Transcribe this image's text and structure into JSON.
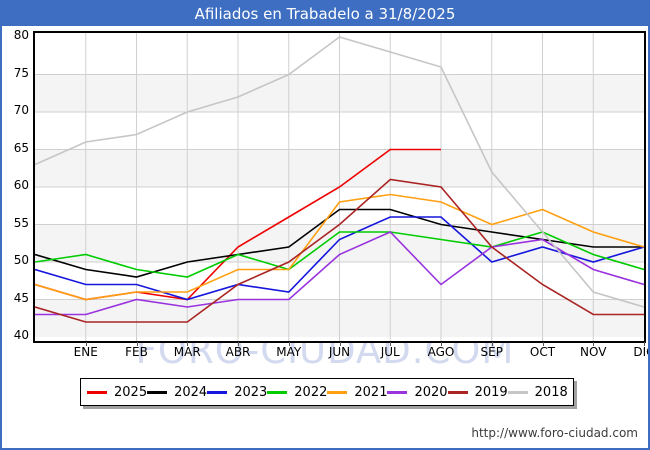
{
  "title": "Afiliados en Trabadelo a 31/8/2025",
  "watermark": "FORO-CIUDAD.COM",
  "footer": {
    "url": "http://www.foro-ciudad.com"
  },
  "ui": {
    "title_bar_color": "#3d6ec1",
    "frame_color": "#3d6ec1",
    "plot_band_color": "#f4f4f4",
    "grid_color": "#d0d0d0",
    "watermark_color": "#d3d9ef"
  },
  "chart_data": {
    "type": "line",
    "title": "Afiliados en Trabadelo a 31/8/2025",
    "xlabel": "",
    "ylabel": "",
    "ylim": [
      40,
      80
    ],
    "y_ticks": [
      40,
      45,
      50,
      55,
      60,
      65,
      70,
      75,
      80
    ],
    "grid": true,
    "legend_position": "bottom",
    "x_axis": {
      "tick_labels": [
        "ENE",
        "FEB",
        "MAR",
        "ABR",
        "MAY",
        "JUN",
        "JUL",
        "AGO",
        "SEP",
        "OCT",
        "NOV",
        "DIC"
      ],
      "note": "Each series has a starting point drawn on the left axis before the ENE tick; monthly points fall on the vertical gridlines."
    },
    "series": [
      {
        "name": "2025",
        "color": "#ee0000",
        "values": [
          47,
          45,
          46,
          45,
          52,
          56,
          60,
          65,
          65
        ]
      },
      {
        "name": "2024",
        "color": "#000000",
        "values": [
          51,
          49,
          48,
          50,
          51,
          52,
          57,
          57,
          55,
          54,
          53,
          52,
          52
        ]
      },
      {
        "name": "2023",
        "color": "#1515dd",
        "values": [
          49,
          47,
          47,
          45,
          47,
          46,
          53,
          56,
          56,
          50,
          52,
          50,
          52
        ]
      },
      {
        "name": "2022",
        "color": "#00cc00",
        "values": [
          50,
          51,
          49,
          48,
          51,
          49,
          54,
          54,
          53,
          52,
          54,
          51,
          49
        ]
      },
      {
        "name": "2021",
        "color": "#ffa012",
        "values": [
          47,
          45,
          46,
          46,
          49,
          49,
          58,
          59,
          58,
          55,
          57,
          54,
          52
        ]
      },
      {
        "name": "2020",
        "color": "#9933dd",
        "values": [
          43,
          43,
          45,
          44,
          45,
          45,
          51,
          54,
          47,
          52,
          53,
          49,
          47
        ]
      },
      {
        "name": "2019",
        "color": "#aa2424",
        "values": [
          44,
          42,
          42,
          42,
          47,
          50,
          55,
          61,
          60,
          52,
          47,
          43,
          43
        ]
      },
      {
        "name": "2018",
        "color": "#c6c6c6",
        "values": [
          63,
          66,
          67,
          70,
          72,
          75,
          80,
          78,
          76,
          62,
          54,
          46,
          44
        ]
      }
    ]
  }
}
